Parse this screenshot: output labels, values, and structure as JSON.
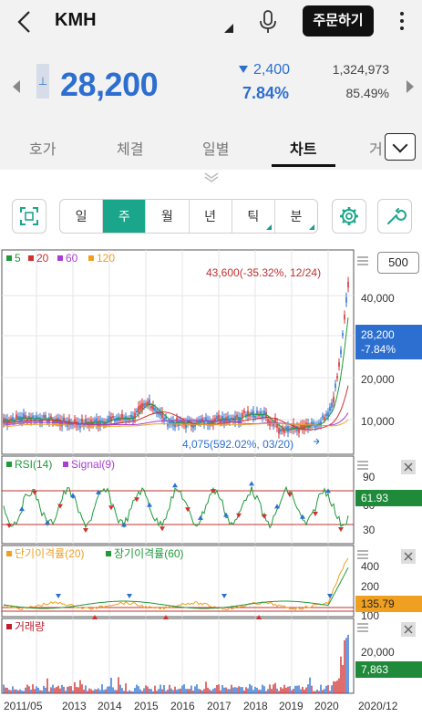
{
  "header": {
    "title": "KMH",
    "order_button": "주문하기"
  },
  "quote": {
    "low_mark": "⊥",
    "price": "28,200",
    "change": "2,400",
    "change_pct": "7.84%",
    "volume": "1,324,973",
    "turnover": "85.49%",
    "direction": "down",
    "color_down": "#2d6fd0",
    "color_up": "#d0302f"
  },
  "tabs": [
    {
      "label": "호가"
    },
    {
      "label": "체결"
    },
    {
      "label": "일별"
    },
    {
      "label": "차트",
      "active": true
    },
    {
      "label": "거"
    }
  ],
  "periods": [
    {
      "label": "일"
    },
    {
      "label": "주",
      "active": true
    },
    {
      "label": "월"
    },
    {
      "label": "년"
    },
    {
      "label": "틱",
      "menu": true
    },
    {
      "label": "분",
      "menu": true
    }
  ],
  "icons": {
    "back": "chevron-left-icon",
    "title_menu": "triangle-dropdown-icon",
    "mic": "microphone-icon",
    "more": "more-vertical-icon",
    "fullscreen": "fullscreen-icon",
    "settings": "gear-icon",
    "tools": "wrench-icon",
    "tab_more": "chevron-down-icon",
    "close": "close-icon"
  },
  "chart": {
    "count_box": "500",
    "price_panel": {
      "legend": [
        {
          "label": "5",
          "color": "#1e9a3a"
        },
        {
          "label": "20",
          "color": "#d0302f"
        },
        {
          "label": "60",
          "color": "#a83fd0"
        },
        {
          "label": "120",
          "color": "#f0a020"
        }
      ],
      "y_ticks": [
        "40,000",
        "20,000",
        "10,000"
      ],
      "high_label": "43,600(-35.32%, 12/24)",
      "low_label": "4,075(592.02%, 03/20)",
      "last_price": "28,200",
      "last_change": "-7.84%",
      "last_color": "#2d6fd0"
    },
    "rsi_panel": {
      "legend": [
        {
          "label": "RSI(14)",
          "color": "#1e9a3a"
        },
        {
          "label": "Signal(9)",
          "color": "#a83fd0"
        }
      ],
      "y_ticks": [
        "90",
        "60",
        "30"
      ],
      "last_value": "61.93",
      "last_color": "#1e8a3a",
      "levels": [
        70,
        30
      ]
    },
    "disparity_panel": {
      "legend": [
        {
          "label": "단기이격률(20)",
          "color": "#f0a020"
        },
        {
          "label": "장기이격률(60)",
          "color": "#1e9a3a"
        }
      ],
      "y_ticks": [
        "400",
        "200",
        "100"
      ],
      "last_value": "135.79",
      "last_color": "#f0a020"
    },
    "volume_panel": {
      "legend": [
        {
          "label": "거래량",
          "color": "#c01f2f"
        }
      ],
      "y_ticks": [
        "20,000"
      ],
      "last_value": "7,863",
      "last_color": "#1e8a3a"
    },
    "x_ticks": [
      "2011/05",
      "2013",
      "2014",
      "2015",
      "2016",
      "2017",
      "2018",
      "2019",
      "2020",
      "2020/12"
    ]
  }
}
